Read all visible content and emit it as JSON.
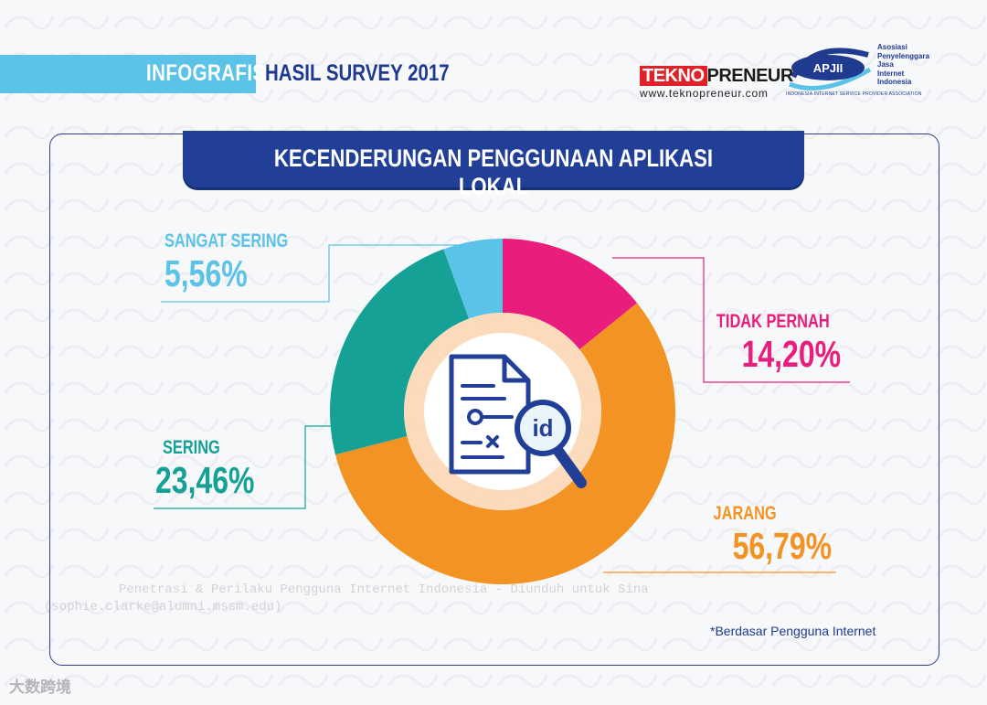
{
  "header": {
    "tag": "INFOGRAFIS",
    "title": "HASIL SURVEY 2017",
    "tekno_part1": "TEKNO",
    "tekno_part2": "PRENEUR",
    "tekno_url": "www.teknopreneur.com",
    "apjii_abbr": "APJII",
    "apjii_name_lines": [
      "Asosiasi",
      "Penyelenggara",
      "Jasa",
      "Internet",
      "Indonesia"
    ],
    "apjii_sub": "INDONESIA INTERNET SERVICE PROVIDER ASSOCIATION"
  },
  "chart_data": {
    "type": "pie",
    "variant": "donut",
    "title": "KECENDERUNGAN PENGGUNAAN APLIKASI LOKAL",
    "center_icon": "document-search-icon",
    "center_icon_text": "id",
    "slices": [
      {
        "label": "TIDAK PERNAH",
        "value": 14.2,
        "display": "14,20%",
        "color": "#e91e7c"
      },
      {
        "label": "JARANG",
        "value": 56.79,
        "display": "56,79%",
        "color": "#f39324"
      },
      {
        "label": "SERING",
        "value": 23.46,
        "display": "23,46%",
        "color": "#16a196"
      },
      {
        "label": "SANGAT SERING",
        "value": 5.56,
        "display": "5,56%",
        "color": "#5bc3e8"
      }
    ]
  },
  "footnote": "*Berdasar Pengguna Internet",
  "watermark_lines": [
    "Penetrasi & Perilaku Pengguna Internet Indonesia - Diunduh untuk Sina",
    "(sophie.clarke@alumni.mssm.edu)"
  ],
  "corner_watermark": "大数跨境"
}
